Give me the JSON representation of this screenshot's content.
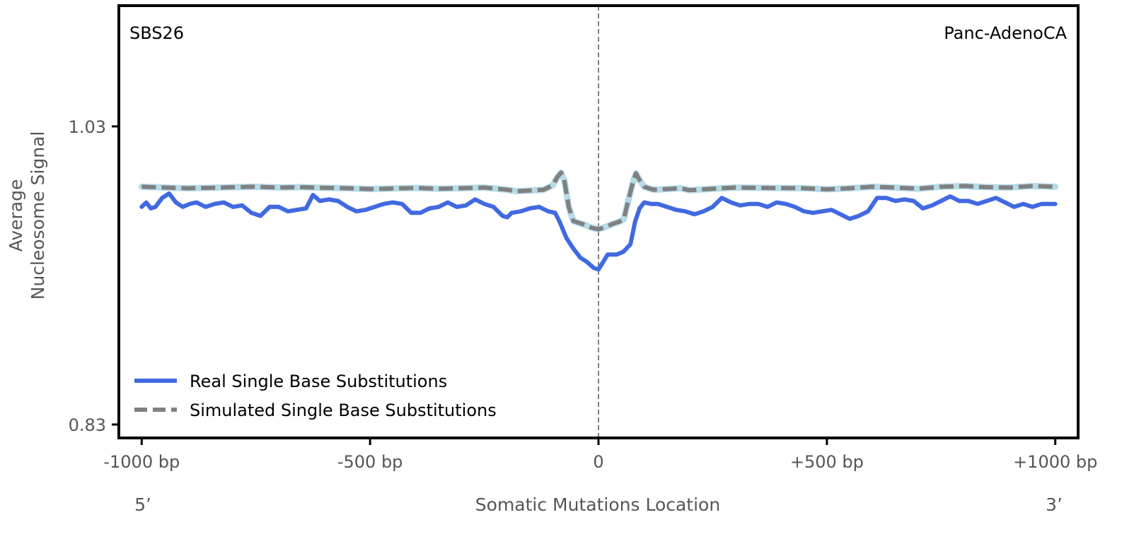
{
  "chart_data": {
    "type": "line",
    "signature_label": "SBS26",
    "cancer_type_label": "Panc-AdenoCA",
    "ylabel_lines": [
      "Average",
      "Nucleosome Signal"
    ],
    "xlabel": "Somatic Mutations Location",
    "x_end_labels": {
      "left": "5’",
      "right": "3’"
    },
    "x_ticks": [
      {
        "value": -1000,
        "label": "-1000 bp"
      },
      {
        "value": -500,
        "label": "-500 bp"
      },
      {
        "value": 0,
        "label": "0"
      },
      {
        "value": 500,
        "label": "+500 bp"
      },
      {
        "value": 1000,
        "label": "+1000 bp"
      }
    ],
    "y_ticks": [
      {
        "value": 1.03,
        "label": "1.03"
      },
      {
        "value": 0.83,
        "label": "0.83"
      }
    ],
    "xlim": [
      -1050,
      1050
    ],
    "ylim": [
      0.821,
      1.111
    ],
    "center_line_x": 0,
    "legend_position": "lower-left",
    "colors": {
      "real": "#4169e1",
      "simulated": "#808080",
      "simulated_band": "#add8e6",
      "center_line": "#808080"
    },
    "series": [
      {
        "name": "Real Single Base Substitutions",
        "style": "solid",
        "x": [
          -1000,
          -990,
          -980,
          -970,
          -955,
          -940,
          -925,
          -910,
          -895,
          -880,
          -860,
          -840,
          -820,
          -800,
          -780,
          -760,
          -740,
          -720,
          -700,
          -680,
          -660,
          -640,
          -625,
          -610,
          -590,
          -570,
          -550,
          -530,
          -510,
          -490,
          -470,
          -450,
          -430,
          -410,
          -390,
          -370,
          -350,
          -330,
          -310,
          -290,
          -270,
          -250,
          -230,
          -210,
          -200,
          -190,
          -170,
          -150,
          -130,
          -110,
          -95,
          -85,
          -70,
          -55,
          -40,
          -25,
          -10,
          0,
          10,
          20,
          40,
          55,
          70,
          80,
          90,
          100,
          115,
          130,
          150,
          170,
          190,
          210,
          230,
          250,
          270,
          290,
          310,
          330,
          350,
          370,
          390,
          410,
          430,
          450,
          470,
          490,
          510,
          530,
          550,
          570,
          590,
          610,
          630,
          650,
          670,
          690,
          710,
          730,
          750,
          770,
          790,
          810,
          830,
          850,
          870,
          890,
          910,
          930,
          950,
          970,
          990,
          1000
        ],
        "y": [
          0.976,
          0.979,
          0.975,
          0.976,
          0.982,
          0.985,
          0.979,
          0.976,
          0.978,
          0.979,
          0.976,
          0.978,
          0.979,
          0.976,
          0.977,
          0.972,
          0.97,
          0.976,
          0.976,
          0.973,
          0.974,
          0.975,
          0.984,
          0.98,
          0.981,
          0.98,
          0.976,
          0.973,
          0.974,
          0.976,
          0.978,
          0.979,
          0.978,
          0.972,
          0.972,
          0.975,
          0.976,
          0.979,
          0.976,
          0.977,
          0.981,
          0.978,
          0.976,
          0.97,
          0.969,
          0.972,
          0.973,
          0.975,
          0.976,
          0.973,
          0.972,
          0.966,
          0.955,
          0.948,
          0.942,
          0.939,
          0.935,
          0.934,
          0.939,
          0.944,
          0.944,
          0.946,
          0.951,
          0.966,
          0.975,
          0.979,
          0.978,
          0.978,
          0.976,
          0.974,
          0.973,
          0.971,
          0.973,
          0.976,
          0.982,
          0.979,
          0.977,
          0.978,
          0.978,
          0.976,
          0.979,
          0.978,
          0.976,
          0.973,
          0.972,
          0.973,
          0.974,
          0.971,
          0.968,
          0.97,
          0.973,
          0.982,
          0.982,
          0.98,
          0.981,
          0.98,
          0.975,
          0.977,
          0.98,
          0.983,
          0.98,
          0.98,
          0.978,
          0.98,
          0.982,
          0.979,
          0.976,
          0.978,
          0.976,
          0.978,
          0.978,
          0.978
        ]
      },
      {
        "name": "Simulated Single Base Substitutions",
        "style": "dashed",
        "x": [
          -1000,
          -950,
          -900,
          -850,
          -800,
          -750,
          -700,
          -650,
          -600,
          -550,
          -500,
          -450,
          -400,
          -350,
          -300,
          -250,
          -200,
          -180,
          -150,
          -120,
          -100,
          -90,
          -82,
          -75,
          -65,
          -55,
          -45,
          -30,
          -15,
          0,
          15,
          30,
          45,
          55,
          65,
          75,
          82,
          90,
          100,
          120,
          150,
          180,
          200,
          250,
          300,
          350,
          400,
          450,
          500,
          550,
          600,
          650,
          700,
          750,
          800,
          850,
          900,
          950,
          1000
        ],
        "y": [
          0.9895,
          0.989,
          0.9885,
          0.9888,
          0.9892,
          0.9895,
          0.989,
          0.9892,
          0.9888,
          0.9885,
          0.988,
          0.9883,
          0.9887,
          0.9882,
          0.9885,
          0.989,
          0.9875,
          0.9865,
          0.987,
          0.9875,
          0.9905,
          0.996,
          0.999,
          0.994,
          0.976,
          0.9665,
          0.9655,
          0.964,
          0.962,
          0.961,
          0.9625,
          0.9645,
          0.966,
          0.9675,
          0.98,
          0.992,
          0.9985,
          0.994,
          0.9895,
          0.9875,
          0.988,
          0.9885,
          0.9872,
          0.9882,
          0.989,
          0.9888,
          0.9886,
          0.9885,
          0.9878,
          0.9885,
          0.9895,
          0.989,
          0.9882,
          0.9895,
          0.99,
          0.9892,
          0.989,
          0.99,
          0.9895
        ]
      }
    ]
  }
}
